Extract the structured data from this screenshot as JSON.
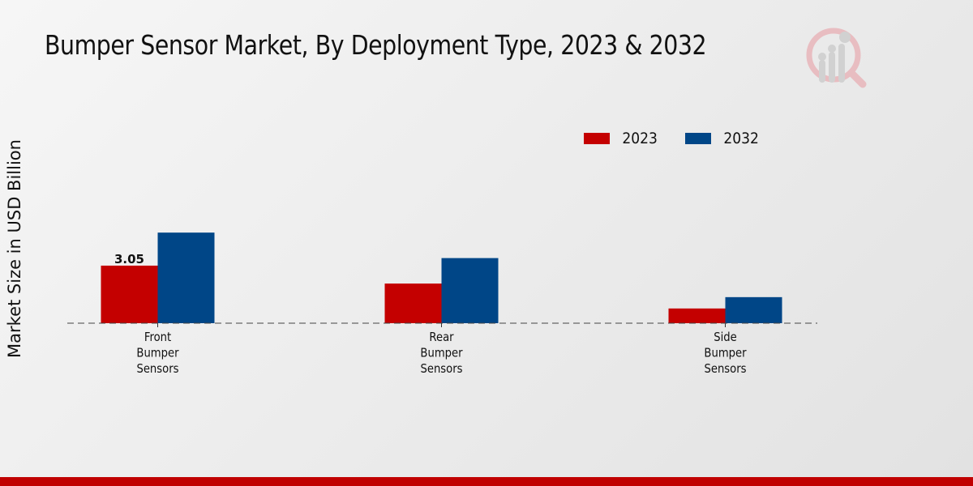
{
  "title": "Bumper Sensor Market, By Deployment Type, 2023 & 2032",
  "logo_icon": "market-research-logo-icon",
  "colors": {
    "2023": "#c40000",
    "2032": "#004687",
    "footer": "#c00000"
  },
  "chart_data": {
    "type": "bar",
    "title": "Bumper Sensor Market, By Deployment Type, 2023 & 2032",
    "xlabel": "",
    "ylabel": "Market Size in USD Billion",
    "categories": [
      [
        "Front",
        "Bumper",
        "Sensors"
      ],
      [
        "Rear",
        "Bumper",
        "Sensors"
      ],
      [
        "Side",
        "Bumper",
        "Sensors"
      ]
    ],
    "series": [
      {
        "name": "2023",
        "color": "#c40000",
        "values": [
          3.05,
          2.1,
          0.78
        ]
      },
      {
        "name": "2032",
        "color": "#004687",
        "values": [
          4.8,
          3.45,
          1.38
        ]
      }
    ],
    "data_labels": [
      {
        "series": "2023",
        "category_index": 0,
        "text": "3.05"
      }
    ],
    "ylim": [
      0,
      6
    ],
    "grid": false,
    "baseline": "dashed",
    "legend": {
      "placement": "top-right",
      "entries": [
        "2023",
        "2032"
      ]
    }
  }
}
